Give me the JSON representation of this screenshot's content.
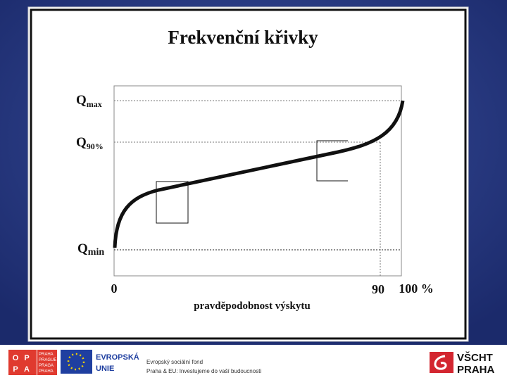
{
  "slide": {
    "title": "Frekvenční křivky",
    "y_labels": [
      {
        "main": "Q",
        "sub": "max"
      },
      {
        "main": "Q",
        "sub": "90%"
      },
      {
        "main": "Q",
        "sub": "min"
      }
    ],
    "x_labels": [
      "0",
      "90",
      "100 %"
    ],
    "x_axis_title": "pravděpodobnost výskytu"
  },
  "footer": {
    "oppa_letters": [
      "O",
      "P",
      "P",
      "A"
    ],
    "oppa_words": [
      "PRAHA",
      "PRAGUE",
      "PRAGA",
      "PRAHA"
    ],
    "eu_lines": [
      "EVROPSKÁ",
      "UNIE"
    ],
    "fund_lines": [
      "Evropský sociální fond",
      "Praha & EU: Investujeme do vaší budoucnosti"
    ],
    "school_lines": [
      "VŠCHT",
      "PRAHA"
    ]
  }
}
